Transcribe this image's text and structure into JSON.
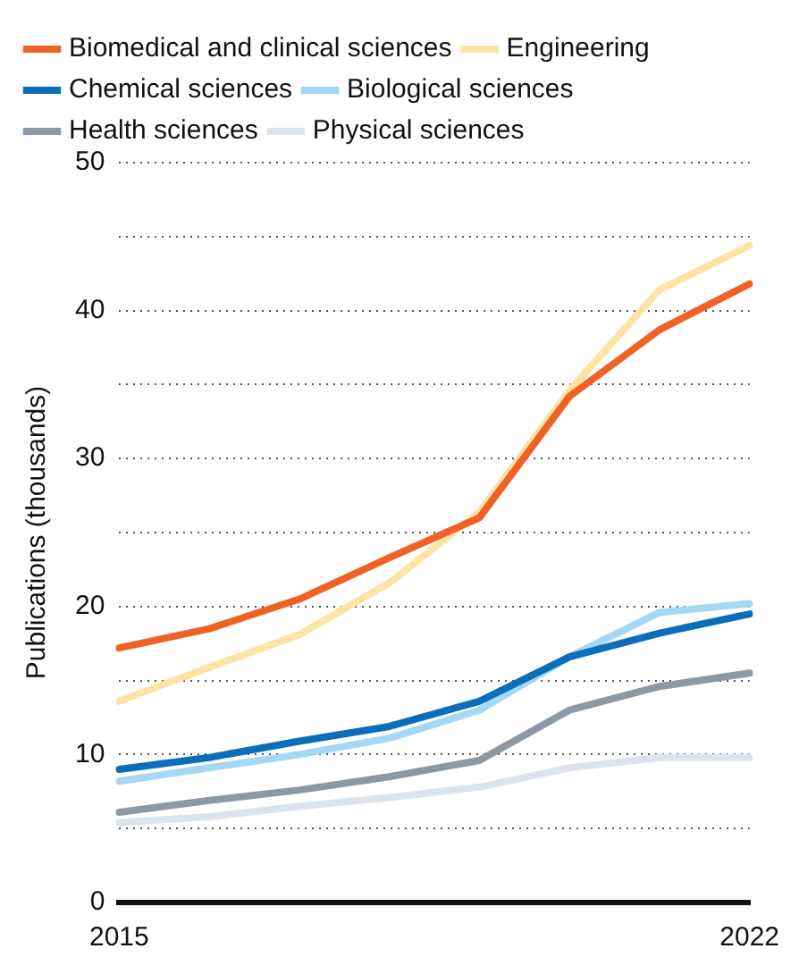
{
  "chart_data": {
    "type": "line",
    "ylabel": "Publications (thousands)",
    "categories": [
      "2015",
      null,
      null,
      null,
      null,
      null,
      null,
      "2022"
    ],
    "series": [
      {
        "name": "Biomedical and clinical sciences",
        "color": "#f06125",
        "values": [
          17.2,
          18.5,
          20.5,
          23.3,
          26,
          34.2,
          38.7,
          41.8
        ]
      },
      {
        "name": "Engineering",
        "color": "#fde4a5",
        "values": [
          13.6,
          15.9,
          18.1,
          21.6,
          26.4,
          34.6,
          41.4,
          44.4
        ]
      },
      {
        "name": "Chemical sciences",
        "color": "#0a6eb8",
        "values": [
          9,
          9.8,
          10.9,
          11.9,
          13.6,
          16.6,
          18.2,
          19.5
        ]
      },
      {
        "name": "Biological sciences",
        "color": "#a5d8f5",
        "values": [
          8.2,
          9.1,
          10,
          11.1,
          13,
          16.6,
          19.6,
          20.2
        ]
      },
      {
        "name": "Health sciences",
        "color": "#8e98a3",
        "values": [
          6.1,
          6.9,
          7.6,
          8.5,
          9.6,
          13,
          14.6,
          15.5
        ]
      },
      {
        "name": "Physical sciences",
        "color": "#dde3ea",
        "values": [
          5.4,
          5.8,
          6.5,
          7.1,
          7.8,
          9.1,
          9.8,
          9.8
        ]
      }
    ],
    "ylim": [
      0,
      50
    ],
    "yticks": [
      0,
      {
        "value": 5,
        "label": null
      },
      10,
      {
        "value": 15,
        "label": null
      },
      20,
      {
        "value": 25,
        "label": null
      },
      30,
      {
        "value": 35,
        "label": null
      },
      40,
      {
        "value": 45,
        "label": null
      },
      50
    ],
    "grid": "y",
    "legend": "top",
    "marker": "none",
    "line_style": "solid"
  }
}
